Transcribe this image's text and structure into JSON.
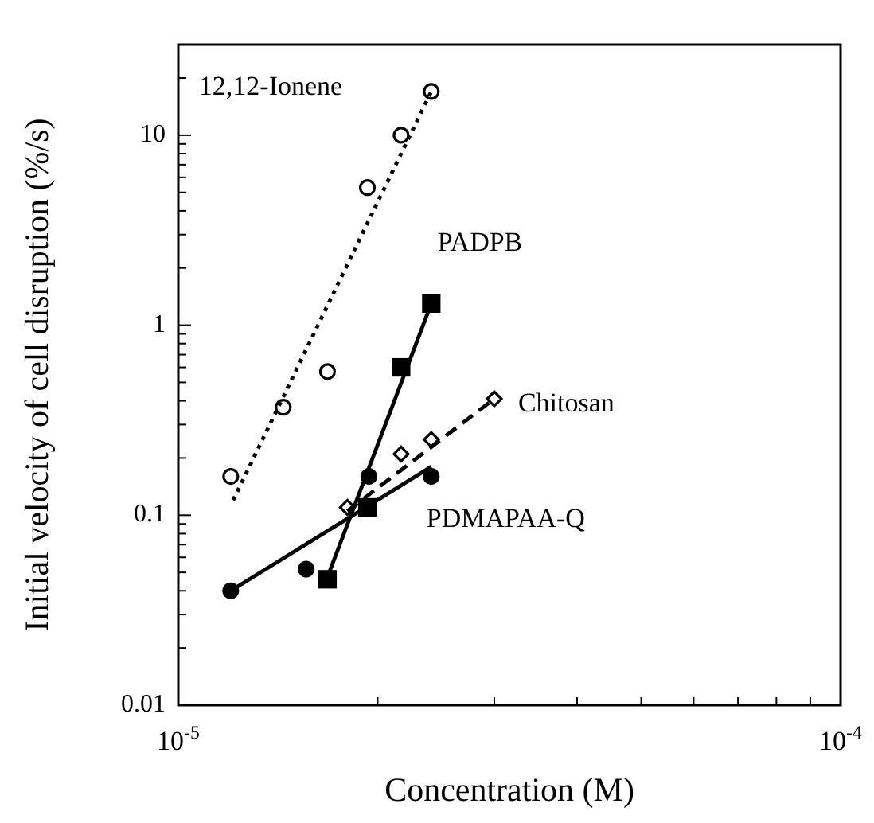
{
  "chart_data": {
    "type": "scatter",
    "xlabel": "Concentration (M)",
    "ylabel": "Initial velocity of cell disruption (%/s)",
    "log": "xy",
    "grid": false,
    "xlim": [
      1e-05,
      0.0001
    ],
    "xticks": [
      {
        "value": 1e-05,
        "label": "10$^{-5}$"
      },
      {
        "value": 2e-05,
        "label": null
      },
      {
        "value": 3e-05,
        "label": null
      },
      {
        "value": 4e-05,
        "label": null
      },
      {
        "value": 5e-05,
        "label": null
      },
      {
        "value": 6e-05,
        "label": null
      },
      {
        "value": 7e-05,
        "label": null
      },
      {
        "value": 8e-05,
        "label": null
      },
      {
        "value": 9e-05,
        "label": null
      },
      {
        "value": 0.0001,
        "label": "10$^{-4}$"
      }
    ],
    "ylim": [
      0.01,
      30
    ],
    "yticks": [
      0.01,
      {
        "value": 0.02,
        "label": null
      },
      {
        "value": 0.03,
        "label": null
      },
      {
        "value": 0.04,
        "label": null
      },
      {
        "value": 0.05,
        "label": null
      },
      {
        "value": 0.06,
        "label": null
      },
      {
        "value": 0.07,
        "label": null
      },
      {
        "value": 0.08,
        "label": null
      },
      {
        "value": 0.09,
        "label": null
      },
      0.1,
      {
        "value": 0.2,
        "label": null
      },
      {
        "value": 0.3,
        "label": null
      },
      {
        "value": 0.4,
        "label": null
      },
      {
        "value": 0.5,
        "label": null
      },
      {
        "value": 0.6,
        "label": null
      },
      {
        "value": 0.7,
        "label": null
      },
      {
        "value": 0.8,
        "label": null
      },
      {
        "value": 0.9,
        "label": null
      },
      1,
      {
        "value": 2,
        "label": null
      },
      {
        "value": 3,
        "label": null
      },
      {
        "value": 4,
        "label": null
      },
      {
        "value": 5,
        "label": null
      },
      {
        "value": 6,
        "label": null
      },
      {
        "value": 7,
        "label": null
      },
      {
        "value": 8,
        "label": null
      },
      {
        "value": 9,
        "label": null
      },
      10,
      {
        "value": 20,
        "label": null
      }
    ],
    "series": [
      {
        "name": "12,12-Ionene",
        "marker": "circle",
        "color": "#ffffff",
        "x": [
          1.2e-05,
          1.44e-05,
          1.68e-05,
          1.93e-05,
          2.17e-05,
          2.41e-05
        ],
        "values": [
          0.16,
          0.37,
          0.57,
          5.3,
          10,
          17
        ]
      },
      {
        "type": "line",
        "marker": "none",
        "line_style": "dotted",
        "color": "#000000",
        "x": [
          1.21e-05,
          2.41e-05
        ],
        "values": [
          0.12,
          17
        ]
      },
      {
        "name": "PADPB",
        "marker": "square",
        "color": "#000000",
        "x": [
          1.68e-05,
          1.93e-05,
          2.17e-05,
          2.41e-05
        ],
        "values": [
          0.046,
          0.11,
          0.6,
          1.3
        ]
      },
      {
        "type": "line",
        "marker": "none",
        "line_style": "solid",
        "color": "#000000",
        "x": [
          1.69e-05,
          2.41e-05
        ],
        "values": [
          0.05,
          1.3
        ]
      },
      {
        "name": "Chitosan",
        "marker": "diamond",
        "color": "#ffffff",
        "x": [
          1.8e-05,
          2.17e-05,
          2.41e-05,
          3e-05
        ],
        "values": [
          0.11,
          0.21,
          0.25,
          0.41
        ]
      },
      {
        "type": "line",
        "marker": "none",
        "line_style": "dashed",
        "color": "#000000",
        "x": [
          1.8e-05,
          3e-05
        ],
        "values": [
          0.105,
          0.41
        ]
      },
      {
        "name": "PDMAPAA-Q",
        "marker": "circle",
        "color": "#000000",
        "x": [
          1.2e-05,
          1.56e-05,
          1.94e-05,
          2.41e-05
        ],
        "values": [
          0.04,
          0.052,
          0.16,
          0.16
        ]
      },
      {
        "type": "line",
        "marker": "none",
        "line_style": "solid",
        "color": "#000000",
        "x": [
          1.2e-05,
          2.41e-05
        ],
        "values": [
          0.04,
          0.18
        ]
      }
    ]
  }
}
